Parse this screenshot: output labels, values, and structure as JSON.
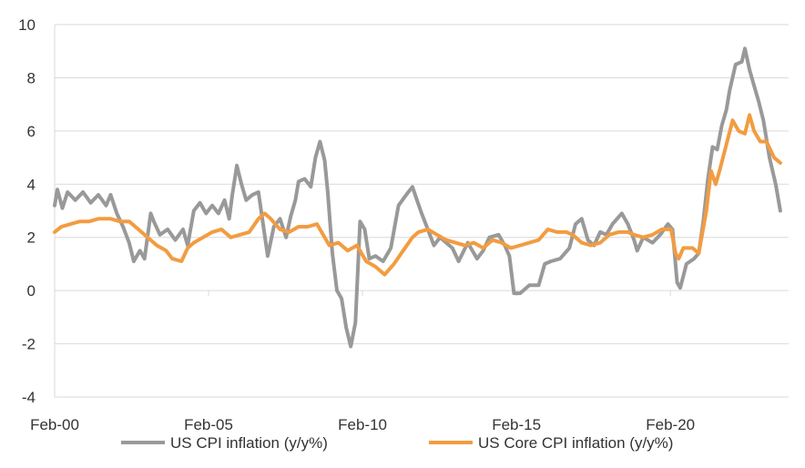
{
  "chart_data": {
    "type": "line",
    "title": "",
    "xlabel": "",
    "ylabel": "",
    "ylim": [
      -4,
      10
    ],
    "yticks": [
      10,
      8,
      6,
      4,
      2,
      0,
      -2,
      -4
    ],
    "xticks": [
      {
        "label": "Feb-00",
        "x": 2000.08
      },
      {
        "label": "Feb-05",
        "x": 2005.08
      },
      {
        "label": "Feb-10",
        "x": 2010.08
      },
      {
        "label": "Feb-15",
        "x": 2015.08
      },
      {
        "label": "Feb-20",
        "x": 2020.08
      }
    ],
    "xlim": [
      2000.08,
      2023.92
    ],
    "grid": "horizontal",
    "legend_position": "bottom",
    "series": [
      {
        "name": "US CPI inflation (y/y%)",
        "color": "#999999",
        "points": [
          [
            2000.08,
            3.2
          ],
          [
            2000.17,
            3.8
          ],
          [
            2000.33,
            3.1
          ],
          [
            2000.5,
            3.7
          ],
          [
            2000.75,
            3.4
          ],
          [
            2001.0,
            3.7
          ],
          [
            2001.25,
            3.3
          ],
          [
            2001.5,
            3.6
          ],
          [
            2001.75,
            3.2
          ],
          [
            2001.9,
            3.6
          ],
          [
            2002.1,
            2.9
          ],
          [
            2002.3,
            2.4
          ],
          [
            2002.5,
            1.8
          ],
          [
            2002.65,
            1.1
          ],
          [
            2002.85,
            1.5
          ],
          [
            2003.0,
            1.2
          ],
          [
            2003.2,
            2.9
          ],
          [
            2003.3,
            2.6
          ],
          [
            2003.5,
            2.1
          ],
          [
            2003.75,
            2.3
          ],
          [
            2004.0,
            1.9
          ],
          [
            2004.25,
            2.3
          ],
          [
            2004.4,
            1.7
          ],
          [
            2004.6,
            3.0
          ],
          [
            2004.8,
            3.3
          ],
          [
            2005.0,
            2.9
          ],
          [
            2005.2,
            3.2
          ],
          [
            2005.4,
            2.9
          ],
          [
            2005.6,
            3.4
          ],
          [
            2005.75,
            2.7
          ],
          [
            2005.85,
            3.6
          ],
          [
            2006.0,
            4.7
          ],
          [
            2006.15,
            4.0
          ],
          [
            2006.3,
            3.4
          ],
          [
            2006.5,
            3.6
          ],
          [
            2006.7,
            3.7
          ],
          [
            2006.9,
            2.1
          ],
          [
            2007.0,
            1.3
          ],
          [
            2007.2,
            2.4
          ],
          [
            2007.4,
            2.7
          ],
          [
            2007.6,
            2.0
          ],
          [
            2007.75,
            2.8
          ],
          [
            2007.9,
            3.4
          ],
          [
            2008.0,
            4.1
          ],
          [
            2008.2,
            4.2
          ],
          [
            2008.4,
            3.9
          ],
          [
            2008.55,
            5.0
          ],
          [
            2008.7,
            5.6
          ],
          [
            2008.85,
            4.9
          ],
          [
            2008.95,
            3.7
          ],
          [
            2009.1,
            1.4
          ],
          [
            2009.25,
            0.0
          ],
          [
            2009.4,
            -0.3
          ],
          [
            2009.55,
            -1.4
          ],
          [
            2009.7,
            -2.1
          ],
          [
            2009.85,
            -1.2
          ],
          [
            2010.0,
            2.6
          ],
          [
            2010.15,
            2.3
          ],
          [
            2010.3,
            1.2
          ],
          [
            2010.5,
            1.3
          ],
          [
            2010.75,
            1.1
          ],
          [
            2011.0,
            1.6
          ],
          [
            2011.25,
            3.2
          ],
          [
            2011.5,
            3.6
          ],
          [
            2011.7,
            3.9
          ],
          [
            2011.85,
            3.4
          ],
          [
            2012.0,
            2.9
          ],
          [
            2012.2,
            2.3
          ],
          [
            2012.4,
            1.7
          ],
          [
            2012.6,
            2.0
          ],
          [
            2012.8,
            1.8
          ],
          [
            2013.0,
            1.6
          ],
          [
            2013.2,
            1.1
          ],
          [
            2013.5,
            1.8
          ],
          [
            2013.8,
            1.2
          ],
          [
            2014.0,
            1.5
          ],
          [
            2014.2,
            2.0
          ],
          [
            2014.5,
            2.1
          ],
          [
            2014.7,
            1.7
          ],
          [
            2014.85,
            1.3
          ],
          [
            2015.0,
            -0.1
          ],
          [
            2015.2,
            -0.1
          ],
          [
            2015.5,
            0.2
          ],
          [
            2015.8,
            0.2
          ],
          [
            2016.0,
            1.0
          ],
          [
            2016.2,
            1.1
          ],
          [
            2016.5,
            1.2
          ],
          [
            2016.8,
            1.6
          ],
          [
            2017.0,
            2.5
          ],
          [
            2017.2,
            2.7
          ],
          [
            2017.4,
            1.9
          ],
          [
            2017.6,
            1.7
          ],
          [
            2017.8,
            2.2
          ],
          [
            2018.0,
            2.1
          ],
          [
            2018.2,
            2.5
          ],
          [
            2018.5,
            2.9
          ],
          [
            2018.7,
            2.5
          ],
          [
            2018.9,
            1.9
          ],
          [
            2019.0,
            1.5
          ],
          [
            2019.2,
            2.0
          ],
          [
            2019.5,
            1.8
          ],
          [
            2019.75,
            2.1
          ],
          [
            2020.0,
            2.5
          ],
          [
            2020.15,
            2.3
          ],
          [
            2020.3,
            0.3
          ],
          [
            2020.4,
            0.1
          ],
          [
            2020.6,
            1.0
          ],
          [
            2020.85,
            1.2
          ],
          [
            2021.0,
            1.4
          ],
          [
            2021.15,
            2.6
          ],
          [
            2021.3,
            4.2
          ],
          [
            2021.45,
            5.4
          ],
          [
            2021.6,
            5.3
          ],
          [
            2021.75,
            6.2
          ],
          [
            2021.9,
            6.8
          ],
          [
            2022.0,
            7.5
          ],
          [
            2022.2,
            8.5
          ],
          [
            2022.4,
            8.6
          ],
          [
            2022.5,
            9.1
          ],
          [
            2022.65,
            8.3
          ],
          [
            2022.8,
            7.7
          ],
          [
            2022.95,
            7.1
          ],
          [
            2023.1,
            6.4
          ],
          [
            2023.3,
            5.0
          ],
          [
            2023.5,
            4.0
          ],
          [
            2023.65,
            3.0
          ]
        ]
      },
      {
        "name": "US Core CPI inflation (y/y%)",
        "color": "#F29C41",
        "points": [
          [
            2000.08,
            2.2
          ],
          [
            2000.3,
            2.4
          ],
          [
            2000.6,
            2.5
          ],
          [
            2000.9,
            2.6
          ],
          [
            2001.2,
            2.6
          ],
          [
            2001.5,
            2.7
          ],
          [
            2001.9,
            2.7
          ],
          [
            2002.2,
            2.6
          ],
          [
            2002.5,
            2.6
          ],
          [
            2002.8,
            2.3
          ],
          [
            2003.1,
            2.0
          ],
          [
            2003.4,
            1.7
          ],
          [
            2003.7,
            1.5
          ],
          [
            2003.9,
            1.2
          ],
          [
            2004.2,
            1.1
          ],
          [
            2004.4,
            1.6
          ],
          [
            2004.6,
            1.8
          ],
          [
            2004.9,
            2.0
          ],
          [
            2005.2,
            2.2
          ],
          [
            2005.5,
            2.3
          ],
          [
            2005.8,
            2.0
          ],
          [
            2006.1,
            2.1
          ],
          [
            2006.4,
            2.2
          ],
          [
            2006.7,
            2.7
          ],
          [
            2006.9,
            2.9
          ],
          [
            2007.1,
            2.7
          ],
          [
            2007.4,
            2.3
          ],
          [
            2007.7,
            2.2
          ],
          [
            2008.0,
            2.4
          ],
          [
            2008.3,
            2.4
          ],
          [
            2008.6,
            2.5
          ],
          [
            2008.8,
            2.1
          ],
          [
            2009.0,
            1.7
          ],
          [
            2009.3,
            1.8
          ],
          [
            2009.6,
            1.5
          ],
          [
            2009.9,
            1.7
          ],
          [
            2010.2,
            1.1
          ],
          [
            2010.5,
            0.9
          ],
          [
            2010.8,
            0.6
          ],
          [
            2011.1,
            1.0
          ],
          [
            2011.4,
            1.5
          ],
          [
            2011.7,
            2.0
          ],
          [
            2011.9,
            2.2
          ],
          [
            2012.2,
            2.3
          ],
          [
            2012.5,
            2.1
          ],
          [
            2012.8,
            1.9
          ],
          [
            2013.1,
            1.8
          ],
          [
            2013.4,
            1.7
          ],
          [
            2013.7,
            1.8
          ],
          [
            2014.0,
            1.6
          ],
          [
            2014.3,
            1.9
          ],
          [
            2014.6,
            1.8
          ],
          [
            2014.9,
            1.6
          ],
          [
            2015.2,
            1.7
          ],
          [
            2015.5,
            1.8
          ],
          [
            2015.8,
            1.9
          ],
          [
            2016.1,
            2.3
          ],
          [
            2016.4,
            2.2
          ],
          [
            2016.7,
            2.2
          ],
          [
            2016.9,
            2.1
          ],
          [
            2017.2,
            1.8
          ],
          [
            2017.5,
            1.7
          ],
          [
            2017.8,
            1.8
          ],
          [
            2018.1,
            2.1
          ],
          [
            2018.4,
            2.2
          ],
          [
            2018.7,
            2.2
          ],
          [
            2018.9,
            2.1
          ],
          [
            2019.2,
            2.0
          ],
          [
            2019.5,
            2.1
          ],
          [
            2019.8,
            2.3
          ],
          [
            2020.1,
            2.3
          ],
          [
            2020.25,
            1.4
          ],
          [
            2020.35,
            1.2
          ],
          [
            2020.5,
            1.6
          ],
          [
            2020.8,
            1.6
          ],
          [
            2021.0,
            1.4
          ],
          [
            2021.25,
            3.0
          ],
          [
            2021.4,
            4.5
          ],
          [
            2021.55,
            4.0
          ],
          [
            2021.7,
            4.6
          ],
          [
            2021.9,
            5.5
          ],
          [
            2022.1,
            6.4
          ],
          [
            2022.3,
            6.0
          ],
          [
            2022.5,
            5.9
          ],
          [
            2022.65,
            6.6
          ],
          [
            2022.8,
            6.0
          ],
          [
            2023.0,
            5.6
          ],
          [
            2023.2,
            5.6
          ],
          [
            2023.45,
            5.0
          ],
          [
            2023.65,
            4.8
          ]
        ]
      }
    ]
  }
}
